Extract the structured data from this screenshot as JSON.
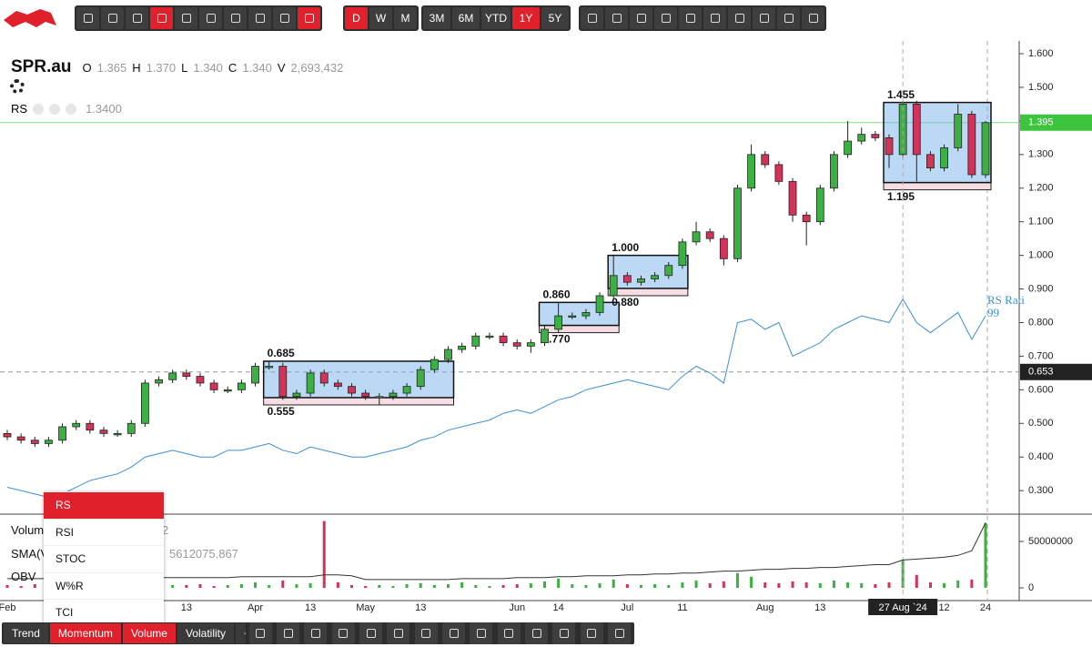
{
  "toolbar": {
    "intervals": [
      "D",
      "W",
      "M"
    ],
    "ranges": [
      "3M",
      "6M",
      "YTD",
      "1Y",
      "5Y"
    ]
  },
  "header": {
    "symbol": "SPR.au",
    "ohlcv": [
      {
        "label": "O",
        "value": "1.365"
      },
      {
        "label": "H",
        "value": "1.370"
      },
      {
        "label": "L",
        "value": "1.340"
      },
      {
        "label": "C",
        "value": "1.340"
      },
      {
        "label": "V",
        "value": "2,693,432"
      }
    ],
    "indicator": "RS",
    "indicator_value": "1.3400"
  },
  "chart_data": {
    "type": "candlestick",
    "categories": [
      "Feb",
      null,
      null,
      null,
      null,
      null,
      null,
      null,
      null,
      null,
      null,
      null,
      null,
      "13",
      null,
      null,
      null,
      null,
      "Apr",
      null,
      null,
      null,
      "13",
      null,
      null,
      null,
      "May",
      null,
      null,
      null,
      "13",
      null,
      null,
      null,
      null,
      null,
      null,
      "Jun",
      null,
      null,
      "14",
      null,
      null,
      null,
      null,
      "Jul",
      null,
      null,
      null,
      "11",
      null,
      null,
      null,
      null,
      null,
      "Aug",
      null,
      null,
      null,
      "13",
      null,
      null,
      null,
      null,
      null,
      "27 Aug `24",
      null,
      null,
      "12",
      null,
      null,
      "24"
    ],
    "open": [
      0.47,
      0.46,
      0.45,
      0.44,
      0.45,
      0.49,
      0.5,
      0.48,
      0.47,
      0.47,
      0.5,
      0.62,
      0.63,
      0.65,
      0.64,
      0.62,
      0.6,
      0.6,
      0.62,
      0.67,
      0.67,
      0.58,
      0.59,
      0.65,
      0.62,
      0.61,
      0.59,
      0.58,
      0.58,
      0.59,
      0.61,
      0.66,
      0.69,
      0.72,
      0.73,
      0.76,
      0.76,
      0.74,
      0.73,
      0.74,
      0.78,
      0.82,
      0.82,
      0.83,
      0.88,
      0.94,
      0.92,
      0.93,
      0.94,
      0.97,
      1.04,
      1.07,
      1.05,
      0.99,
      1.2,
      1.3,
      1.27,
      1.22,
      1.12,
      1.1,
      1.2,
      1.3,
      1.34,
      1.36,
      1.35,
      1.3,
      1.45,
      1.3,
      1.26,
      1.32,
      1.42,
      1.24
    ],
    "high": [
      0.48,
      0.47,
      0.46,
      0.46,
      0.5,
      0.51,
      0.51,
      0.49,
      0.48,
      0.51,
      0.63,
      0.64,
      0.66,
      0.66,
      0.65,
      0.63,
      0.61,
      0.63,
      0.68,
      0.685,
      0.68,
      0.6,
      0.66,
      0.66,
      0.63,
      0.62,
      0.6,
      0.59,
      0.6,
      0.62,
      0.67,
      0.7,
      0.73,
      0.74,
      0.77,
      0.77,
      0.77,
      0.75,
      0.75,
      0.79,
      0.86,
      0.83,
      0.84,
      0.89,
      1.0,
      0.95,
      0.94,
      0.95,
      0.98,
      1.05,
      1.1,
      1.08,
      1.06,
      1.21,
      1.33,
      1.31,
      1.28,
      1.23,
      1.13,
      1.21,
      1.31,
      1.4,
      1.38,
      1.37,
      1.36,
      1.46,
      1.46,
      1.31,
      1.33,
      1.45,
      1.43,
      1.4
    ],
    "low": [
      0.45,
      0.44,
      0.43,
      0.43,
      0.44,
      0.48,
      0.47,
      0.46,
      0.46,
      0.46,
      0.49,
      0.61,
      0.62,
      0.63,
      0.61,
      0.59,
      0.59,
      0.59,
      0.61,
      0.66,
      0.57,
      0.57,
      0.58,
      0.61,
      0.6,
      0.58,
      0.57,
      0.555,
      0.57,
      0.58,
      0.6,
      0.65,
      0.68,
      0.71,
      0.72,
      0.75,
      0.73,
      0.72,
      0.71,
      0.73,
      0.77,
      0.81,
      0.81,
      0.82,
      0.87,
      0.91,
      0.91,
      0.92,
      0.93,
      0.96,
      1.03,
      1.04,
      0.97,
      0.98,
      1.19,
      1.26,
      1.21,
      1.1,
      1.03,
      1.09,
      1.19,
      1.29,
      1.33,
      1.34,
      1.26,
      1.29,
      1.22,
      1.25,
      1.25,
      1.31,
      1.23,
      1.23
    ],
    "close": [
      0.46,
      0.45,
      0.44,
      0.45,
      0.49,
      0.5,
      0.48,
      0.47,
      0.47,
      0.5,
      0.62,
      0.63,
      0.65,
      0.64,
      0.62,
      0.6,
      0.6,
      0.62,
      0.67,
      0.67,
      0.58,
      0.59,
      0.65,
      0.62,
      0.61,
      0.59,
      0.58,
      0.58,
      0.59,
      0.61,
      0.66,
      0.69,
      0.72,
      0.73,
      0.76,
      0.76,
      0.74,
      0.73,
      0.74,
      0.78,
      0.82,
      0.82,
      0.83,
      0.88,
      0.94,
      0.92,
      0.93,
      0.94,
      0.97,
      1.04,
      1.07,
      1.05,
      0.99,
      1.2,
      1.3,
      1.27,
      1.22,
      1.12,
      1.1,
      1.2,
      1.3,
      1.34,
      1.36,
      1.35,
      1.3,
      1.45,
      1.3,
      1.26,
      1.32,
      1.42,
      1.24,
      1.395
    ],
    "up_color": "#3cb043",
    "down_color": "#d3325a",
    "ylim": [
      0.23,
      1.638
    ],
    "yticks": [
      {
        "value": 0.3,
        "label": "0.300"
      },
      {
        "value": 0.4,
        "label": "0.400"
      },
      {
        "value": 0.5,
        "label": "0.500"
      },
      {
        "value": 0.6,
        "label": "0.600"
      },
      {
        "value": 0.7,
        "label": "0.700"
      },
      {
        "value": 0.8,
        "label": "0.800"
      },
      {
        "value": 0.9,
        "label": "0.900"
      },
      {
        "value": 1.0,
        "label": "1.000"
      },
      {
        "value": 1.1,
        "label": "1.100"
      },
      {
        "value": 1.2,
        "label": "1.200"
      },
      {
        "value": 1.3,
        "label": "1.300"
      },
      {
        "value": 1.4,
        "label": "1.400"
      },
      {
        "value": 1.5,
        "label": "1.500"
      },
      {
        "value": 1.6,
        "label": "1.600"
      }
    ],
    "last_price": {
      "value": 1.395,
      "label": "1.395"
    },
    "crosshair_price": {
      "value": 0.653,
      "label": "0.653"
    },
    "boxes": [
      {
        "from": 19,
        "to": 32,
        "top": {
          "value": 0.685,
          "label": "0.685"
        },
        "bottom": {
          "value": 0.555,
          "label": "0.555"
        }
      },
      {
        "from": 39,
        "to": 44,
        "top": {
          "value": 0.86,
          "label": "0.860"
        },
        "bottom": {
          "value": 0.77,
          "label": "0.770"
        }
      },
      {
        "from": 44,
        "to": 49,
        "top": {
          "value": 1.0,
          "label": "1.000"
        },
        "bottom": {
          "value": 0.88,
          "label": "0.880"
        }
      },
      {
        "from": 64,
        "to": 71,
        "top": {
          "value": 1.455,
          "label": "1.455"
        },
        "bottom": {
          "value": 1.195,
          "label": "1.195"
        }
      }
    ],
    "rs": {
      "name": "RS Rati",
      "value_label": "99",
      "color": "#3b8fd4",
      "values": [
        0.31,
        0.3,
        0.29,
        0.28,
        0.29,
        0.31,
        0.33,
        0.34,
        0.35,
        0.37,
        0.4,
        0.41,
        0.42,
        0.41,
        0.4,
        0.4,
        0.42,
        0.42,
        0.43,
        0.44,
        0.42,
        0.41,
        0.43,
        0.42,
        0.41,
        0.4,
        0.4,
        0.41,
        0.42,
        0.43,
        0.45,
        0.46,
        0.48,
        0.49,
        0.5,
        0.51,
        0.53,
        0.54,
        0.53,
        0.55,
        0.57,
        0.58,
        0.6,
        0.61,
        0.62,
        0.63,
        0.62,
        0.61,
        0.6,
        0.64,
        0.67,
        0.65,
        0.62,
        0.8,
        0.81,
        0.78,
        0.8,
        0.7,
        0.72,
        0.74,
        0.78,
        0.8,
        0.82,
        0.81,
        0.8,
        0.87,
        0.8,
        0.77,
        0.8,
        0.83,
        0.75,
        0.82
      ]
    },
    "volume": {
      "ylim": [
        -13700000,
        74500000
      ],
      "yticks": [
        0,
        50000000
      ],
      "values": [
        3000000,
        2000000,
        4000000,
        3000000,
        5000000,
        4000000,
        3000000,
        2000000,
        3000000,
        6000000,
        9000000,
        4000000,
        3000000,
        3000000,
        4000000,
        2000000,
        3000000,
        4000000,
        6000000,
        3000000,
        8000000,
        4000000,
        5000000,
        72000000,
        6000000,
        3000000,
        2000000,
        3000000,
        2000000,
        4000000,
        5000000,
        3000000,
        4000000,
        6000000,
        3000000,
        2000000,
        3000000,
        4000000,
        5000000,
        7000000,
        10000000,
        4000000,
        3000000,
        5000000,
        9000000,
        4000000,
        3000000,
        4000000,
        3000000,
        6000000,
        8000000,
        5000000,
        7000000,
        16000000,
        12000000,
        6000000,
        5000000,
        7000000,
        6000000,
        5000000,
        8000000,
        6000000,
        5000000,
        4000000,
        6000000,
        30000000,
        14000000,
        6000000,
        5000000,
        8000000,
        9000000,
        70000000
      ],
      "sma": [
        10000000,
        10000000,
        10000000,
        10000000,
        10000000,
        10000000,
        10000000,
        10000000,
        10000000,
        10000000,
        10000000,
        11000000,
        11000000,
        11000000,
        11000000,
        11000000,
        11000000,
        12000000,
        12000000,
        12000000,
        12000000,
        12000000,
        12000000,
        14000000,
        14000000,
        13000000,
        9000000,
        9000000,
        9000000,
        9000000,
        9000000,
        9000000,
        9000000,
        10000000,
        10000000,
        10000000,
        10000000,
        11000000,
        11000000,
        11000000,
        12000000,
        12000000,
        13000000,
        13000000,
        13000000,
        14000000,
        14000000,
        15000000,
        15000000,
        16000000,
        16000000,
        17000000,
        18000000,
        18000000,
        19000000,
        20000000,
        20000000,
        21000000,
        21000000,
        22000000,
        22000000,
        23000000,
        24000000,
        25000000,
        25000000,
        30000000,
        31000000,
        32000000,
        33000000,
        35000000,
        40000000,
        70000000
      ]
    }
  },
  "volume_pane": {
    "labels": [
      "Volum",
      "SMA(V",
      "OBV"
    ],
    "partial": "2",
    "sma_value": "5612075.867"
  },
  "menu": [
    "RS",
    "RSI",
    "STOC",
    "W%R",
    "TCI"
  ],
  "tabs": [
    "Trend",
    "Momentum",
    "Volume",
    "Volatility",
    "+"
  ]
}
